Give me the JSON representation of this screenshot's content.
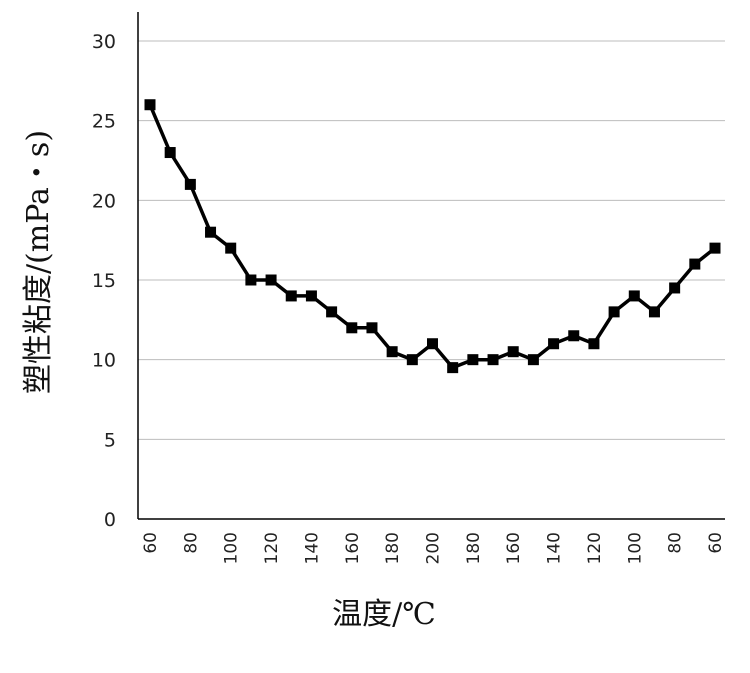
{
  "chart_data": {
    "type": "line",
    "title": "",
    "xlabel": "温度/℃",
    "ylabel": "塑性粘度/(mPa・s)",
    "ylim": [
      0,
      30
    ],
    "yticks": [
      "0",
      "5",
      "10",
      "15",
      "20",
      "25",
      "30"
    ],
    "grid": true,
    "legend": "none",
    "categories": [
      "60",
      "70",
      "80",
      "90",
      "100",
      "110",
      "120",
      "130",
      "140",
      "150",
      "160",
      "170",
      "180",
      "190",
      "200",
      "210",
      "180",
      "190",
      "160",
      "170",
      "140",
      "150",
      "120",
      "110",
      "100",
      "90",
      "80",
      "70",
      "60"
    ],
    "x_tick_labels_shown": [
      "60",
      "",
      "80",
      "",
      "100",
      "",
      "120",
      "",
      "140",
      "",
      "160",
      "",
      "180",
      "",
      "200",
      "",
      "180",
      "",
      "160",
      "",
      "140",
      "",
      "120",
      "",
      "100",
      "",
      "80",
      "",
      "60"
    ],
    "series": [
      {
        "values": [
          26,
          23,
          21,
          18,
          17,
          15,
          15,
          14,
          14,
          13,
          12,
          12,
          10.5,
          10,
          11,
          9.5,
          10,
          10,
          10.5,
          10,
          11,
          11.5,
          11,
          13,
          14,
          13,
          14.5,
          16,
          17
        ]
      }
    ],
    "line_color": "#000000",
    "marker": "square"
  }
}
